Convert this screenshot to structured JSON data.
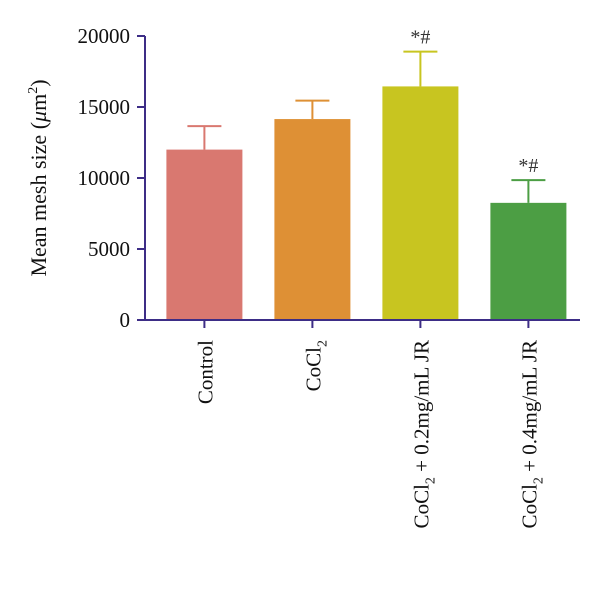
{
  "chart_data": {
    "type": "bar",
    "title": "",
    "xlabel": "",
    "ylabel": {
      "prefix": "Mean mesh size (",
      "mu": "μ",
      "unit": "m",
      "sup": "2",
      "suffix": ")"
    },
    "ylim": [
      0,
      20000
    ],
    "yticks": [
      "0",
      "5000",
      "10000",
      "15000",
      "20000"
    ],
    "grid": false,
    "categories": [
      {
        "base": "Control",
        "sub": "",
        "rest": ""
      },
      {
        "base": "CoCl",
        "sub": "2",
        "rest": ""
      },
      {
        "base": "CoCl",
        "sub": "2",
        "rest": " + 0.2mg/mL JR"
      },
      {
        "base": "CoCl",
        "sub": "2",
        "rest": " + 0.4mg/mL JR"
      }
    ],
    "values": [
      12000,
      14150,
      16450,
      8250
    ],
    "errors": [
      1650,
      1300,
      2450,
      1600
    ],
    "significance": [
      "",
      "",
      "*#",
      "*#"
    ],
    "colors": [
      "#d97870",
      "#de9035",
      "#c8c520",
      "#4c9e44"
    ],
    "errorbar_colors": [
      "#d97870",
      "#de9035",
      "#c8c520",
      "#4c9e44"
    ],
    "axis_color": "#3d2d86"
  }
}
